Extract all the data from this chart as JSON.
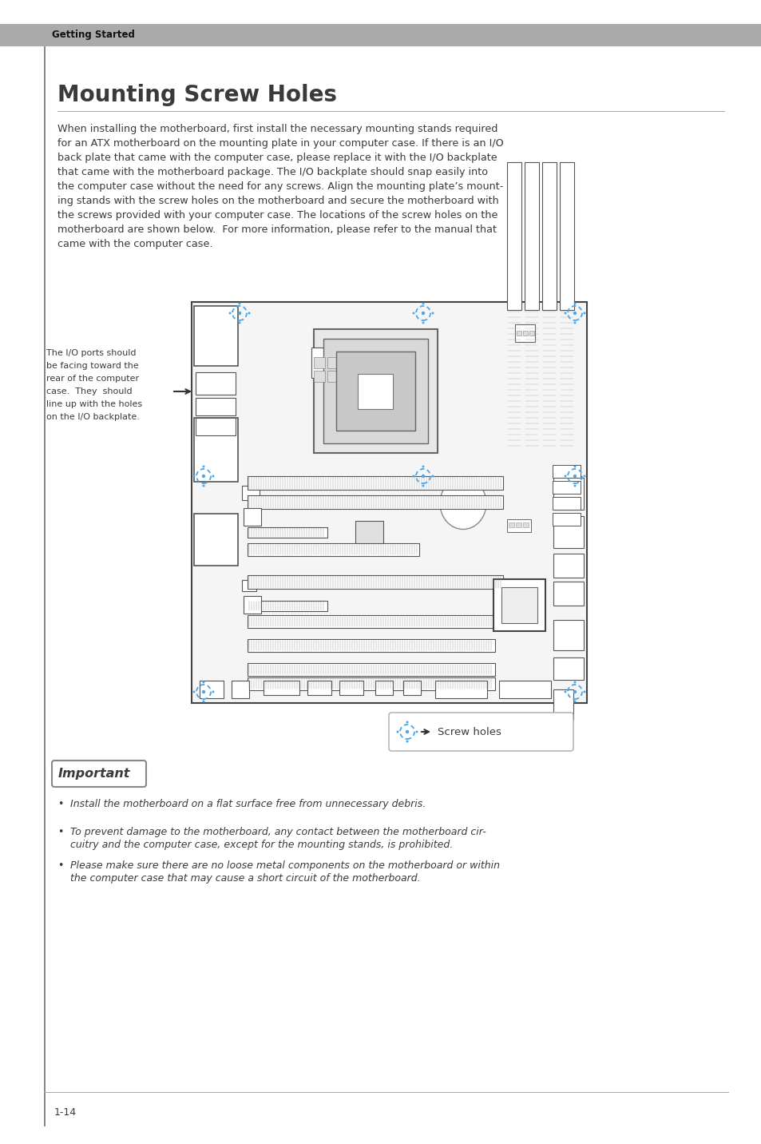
{
  "page_bg": "#ffffff",
  "header_text": "Getting Started",
  "title": "Mounting Screw Holes",
  "body_text_lines": [
    "When installing the motherboard, first install the necessary mounting stands required",
    "for an ATX motherboard on the mounting plate in your computer case. If there is an I/O",
    "back plate that came with the computer case, please replace it with the I/O backplate",
    "that came with the motherboard package. The I/O backplate should snap easily into",
    "the computer case without the need for any screws. Align the mounting plate’s mount-",
    "ing stands with the screw holes on the motherboard and secure the motherboard with",
    "the screws provided with your computer case. The locations of the screw holes on the",
    "motherboard are shown below.  For more information, please refer to the manual that",
    "came with the computer case."
  ],
  "io_note_lines": [
    "The I/O ports should",
    "be facing toward the",
    "rear of the computer",
    "case.  They  should",
    "line up with the holes",
    "on the I/O backplate."
  ],
  "legend_text": "Screw holes",
  "important_title": "Important",
  "bullet1": "Install the motherboard on a flat surface free from unnecessary debris.",
  "bullet2_l1": "To prevent damage to the motherboard, any contact between the motherboard cir-",
  "bullet2_l2": "cuitry and the computer case, except for the mounting stands, is prohibited.",
  "bullet3_l1": "Please make sure there are no loose metal components on the motherboard or within",
  "bullet3_l2": "the computer case that may cause a short circuit of the motherboard.",
  "page_number": "1-14",
  "text_color": "#3a3a3a",
  "screw_color": "#4da6e8",
  "header_bar": "#909090"
}
